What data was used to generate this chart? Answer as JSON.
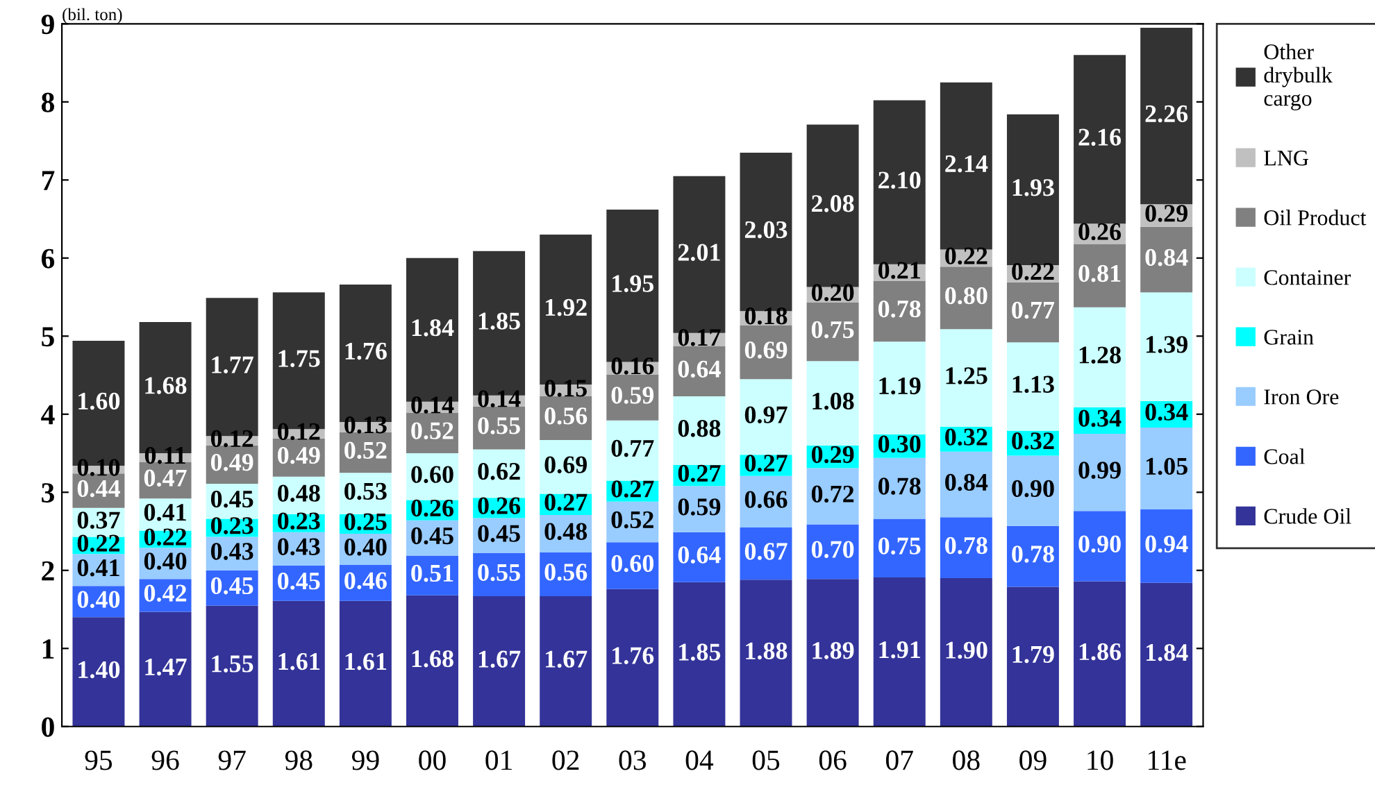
{
  "chart_data": {
    "type": "bar",
    "stacked": true,
    "ylabel": "(bil. ton)",
    "categories": [
      "95",
      "96",
      "97",
      "98",
      "99",
      "00",
      "01",
      "02",
      "03",
      "04",
      "05",
      "06",
      "07",
      "08",
      "09",
      "10",
      "11e"
    ],
    "ylim": [
      0,
      9
    ],
    "yticks": [
      0,
      1,
      2,
      3,
      4,
      5,
      6,
      7,
      8,
      9
    ],
    "grid": false,
    "legend": "right",
    "series": [
      {
        "name": "Crude Oil",
        "color": "#333399",
        "values": [
          1.4,
          1.47,
          1.55,
          1.61,
          1.61,
          1.68,
          1.67,
          1.67,
          1.76,
          1.85,
          1.88,
          1.89,
          1.91,
          1.9,
          1.79,
          1.86,
          1.84
        ],
        "value_labels": [
          "1.40",
          "1.47",
          "1.55",
          "1.61",
          "1.61",
          "1.68",
          "1.67",
          "1.67",
          "1.76",
          "1.85",
          "1.88",
          "1.89",
          "1.91",
          "1.90",
          "1.79",
          "1.86",
          "1.84"
        ]
      },
      {
        "name": "Coal",
        "color": "#3366ff",
        "values": [
          0.4,
          0.42,
          0.45,
          0.45,
          0.46,
          0.51,
          0.55,
          0.56,
          0.6,
          0.64,
          0.67,
          0.7,
          0.75,
          0.78,
          0.78,
          0.9,
          0.94
        ],
        "value_labels": [
          "0.40",
          "0.42",
          "0.45",
          "0.45",
          "0.46",
          "0.51",
          "0.55",
          "0.56",
          "0.60",
          "0.64",
          "0.67",
          "0.70",
          "0.75",
          "0.78",
          "0.78",
          "0.90",
          "0.94"
        ]
      },
      {
        "name": "Iron Ore",
        "color": "#99ccff",
        "values": [
          0.41,
          0.4,
          0.43,
          0.43,
          0.4,
          0.45,
          0.45,
          0.48,
          0.52,
          0.59,
          0.66,
          0.72,
          0.78,
          0.84,
          0.9,
          0.99,
          1.05
        ],
        "value_labels": [
          "0.41",
          "0.40",
          "0.43",
          "0.43",
          "0.40",
          "0.45",
          "0.45",
          "0.48",
          "0.52",
          "0.59",
          "0.66",
          "0.72",
          "0.78",
          "0.84",
          "0.90",
          "0.99",
          "1.05"
        ]
      },
      {
        "name": "Grain",
        "color": "#00ffff",
        "values": [
          0.22,
          0.22,
          0.23,
          0.23,
          0.25,
          0.26,
          0.26,
          0.27,
          0.27,
          0.27,
          0.27,
          0.29,
          0.3,
          0.32,
          0.32,
          0.34,
          0.34
        ],
        "value_labels": [
          "0.22",
          "0.22",
          "0.23",
          "0.23",
          "0.25",
          "0.26",
          "0.26",
          "0.27",
          "0.27",
          "0.27",
          "0.27",
          "0.29",
          "0.30",
          "0.32",
          "0.32",
          "0.34",
          "0.34"
        ]
      },
      {
        "name": "Container",
        "color": "#ccffff",
        "values": [
          0.37,
          0.41,
          0.45,
          0.48,
          0.53,
          0.6,
          0.62,
          0.69,
          0.77,
          0.88,
          0.97,
          1.08,
          1.19,
          1.25,
          1.13,
          1.28,
          1.39
        ],
        "value_labels": [
          "0.37",
          "0.41",
          "0.45",
          "0.48",
          "0.53",
          "0.60",
          "0.62",
          "0.69",
          "0.77",
          "0.88",
          "0.97",
          "1.08",
          "1.19",
          "1.25",
          "1.13",
          "1.28",
          "1.39"
        ]
      },
      {
        "name": "Oil Product",
        "color": "#808080",
        "values": [
          0.44,
          0.47,
          0.49,
          0.49,
          0.52,
          0.52,
          0.55,
          0.56,
          0.59,
          0.64,
          0.69,
          0.75,
          0.78,
          0.8,
          0.77,
          0.81,
          0.84
        ],
        "value_labels": [
          "0.44",
          "0.47",
          "0.49",
          "0.49",
          "0.52",
          "0.52",
          "0.55",
          "0.56",
          "0.59",
          "0.64",
          "0.69",
          "0.75",
          "0.78",
          "0.80",
          "0.77",
          "0.81",
          "0.84"
        ]
      },
      {
        "name": "LNG",
        "color": "#c0c0c0",
        "values": [
          0.1,
          0.11,
          0.12,
          0.12,
          0.13,
          0.14,
          0.14,
          0.15,
          0.16,
          0.17,
          0.18,
          0.2,
          0.21,
          0.22,
          0.22,
          0.26,
          0.29
        ],
        "value_labels": [
          "0.10",
          "0.11",
          "0.12",
          "0.12",
          "0.13",
          "0.14",
          "0.14",
          "0.15",
          "0.16",
          "0.17",
          "0.18",
          "0.20",
          "0.21",
          "0.22",
          "0.22",
          "0.26",
          "0.29"
        ]
      },
      {
        "name": "Other drybulk cargo",
        "color": "#333333",
        "values": [
          1.6,
          1.68,
          1.77,
          1.75,
          1.76,
          1.84,
          1.85,
          1.92,
          1.95,
          2.01,
          2.03,
          2.08,
          2.1,
          2.14,
          1.93,
          2.16,
          2.26
        ],
        "value_labels": [
          "1.60",
          "1.68",
          "1.77",
          "1.75",
          "1.76",
          "1.84",
          "1.85",
          "1.92",
          "1.95",
          "2.01",
          "2.03",
          "2.08",
          "2.10",
          "2.14",
          "1.93",
          "2.16",
          "2.26"
        ]
      }
    ]
  }
}
